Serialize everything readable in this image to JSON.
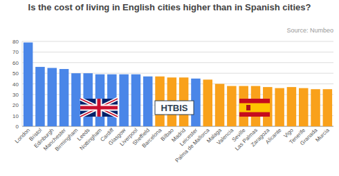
{
  "chart_data": {
    "type": "bar",
    "title": "Is the cost of living in English cities higher than in Spanish cities?",
    "source": "Source: Numbeo",
    "annotations": [
      "HTBIS"
    ],
    "categories": [
      "London",
      "Bristol",
      "Edinburgh",
      "Manchester",
      "Birmingham",
      "Leeds",
      "Nottingham",
      "Cardiff",
      "Glasgow",
      "Liverpool",
      "Sheffield",
      "Barcelona",
      "Bilbao",
      "Madrid",
      "Leicester",
      "Palma de Mallorca",
      "Malaga",
      "Valencia",
      "Seville",
      "Las Palmas",
      "Zaragoza",
      "Alicante",
      "Vigo",
      "Tenerife",
      "Granada",
      "Murcia"
    ],
    "values": [
      79,
      56,
      55,
      54,
      50,
      50,
      49,
      49,
      49,
      49,
      47,
      47,
      46,
      46,
      45,
      44,
      40,
      38,
      38,
      38,
      37,
      36,
      37,
      36,
      35,
      35
    ],
    "colors": [
      "#4a86e8",
      "#4a86e8",
      "#4a86e8",
      "#4a86e8",
      "#4a86e8",
      "#4a86e8",
      "#4a86e8",
      "#4a86e8",
      "#4a86e8",
      "#4a86e8",
      "#4a86e8",
      "#f9a11b",
      "#f9a11b",
      "#f9a11b",
      "#4a86e8",
      "#f9a11b",
      "#f9a11b",
      "#f9a11b",
      "#f9a11b",
      "#f9a11b",
      "#f9a11b",
      "#f9a11b",
      "#f9a11b",
      "#f9a11b",
      "#f9a11b",
      "#f9a11b"
    ],
    "ylim": [
      0,
      80
    ],
    "yticks": [
      0,
      10,
      20,
      30,
      40,
      50,
      60,
      70,
      80
    ],
    "grid": true
  }
}
